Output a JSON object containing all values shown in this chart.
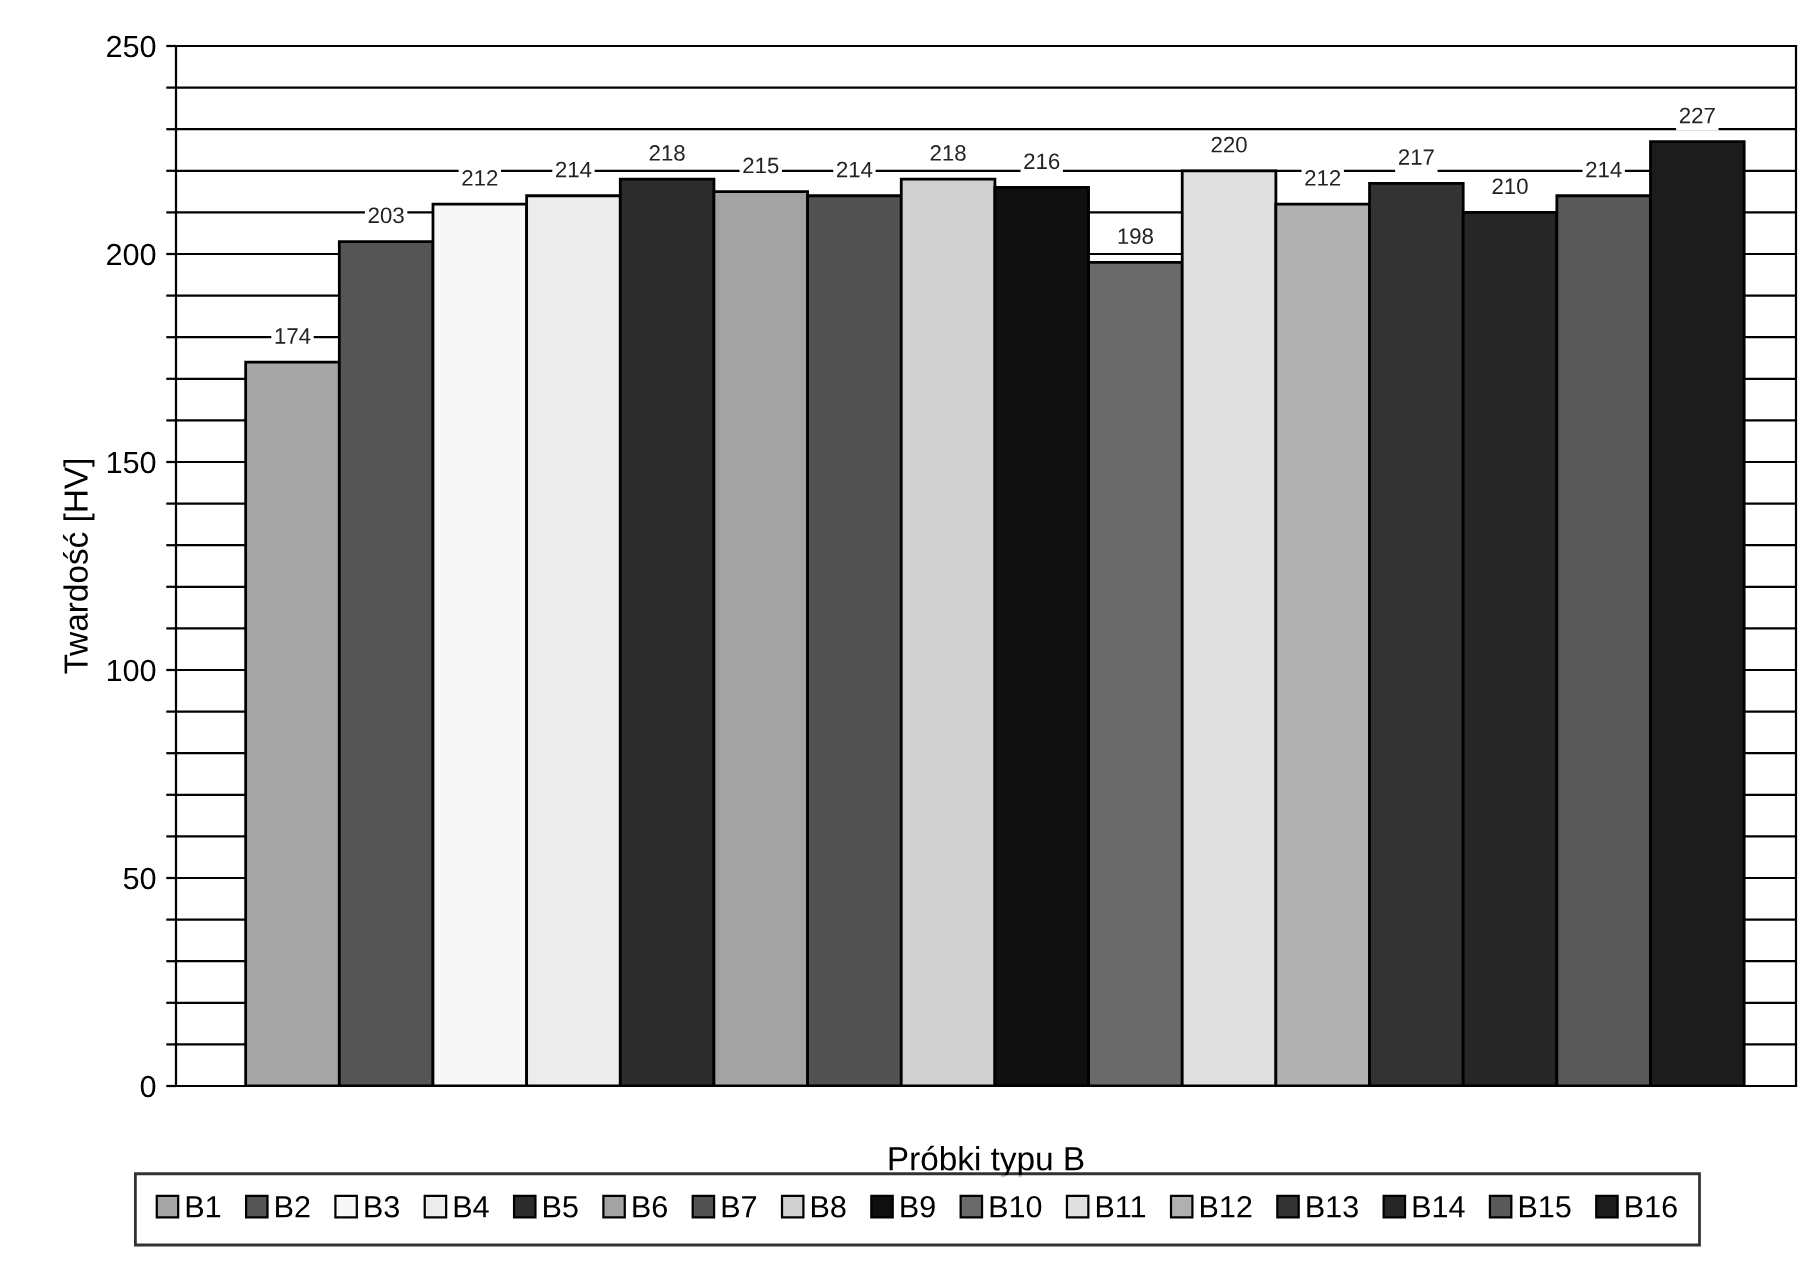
{
  "chart_data": {
    "type": "bar",
    "xlabel": "Próbki typu B",
    "ylabel": "Twardość [HV]",
    "categories": [
      null
    ],
    "series": [
      {
        "name": "B1",
        "color": "#a6a6a6",
        "values": [
          174
        ]
      },
      {
        "name": "B2",
        "color": "#555555",
        "values": [
          203
        ]
      },
      {
        "name": "B3",
        "color": "#f7f7f7",
        "values": [
          212
        ]
      },
      {
        "name": "B4",
        "color": "#ececec",
        "values": [
          214
        ]
      },
      {
        "name": "B5",
        "color": "#2c2c2c",
        "values": [
          218
        ]
      },
      {
        "name": "B6",
        "color": "#a3a3a3",
        "values": [
          215
        ]
      },
      {
        "name": "B7",
        "color": "#525252",
        "values": [
          214
        ]
      },
      {
        "name": "B8",
        "color": "#d0d0d0",
        "values": [
          218
        ]
      },
      {
        "name": "B9",
        "color": "#0f0f0f",
        "values": [
          216
        ]
      },
      {
        "name": "B10",
        "color": "#6a6a6a",
        "values": [
          198
        ]
      },
      {
        "name": "B11",
        "color": "#e0e0e0",
        "values": [
          220
        ]
      },
      {
        "name": "B12",
        "color": "#b0b0b0",
        "values": [
          212
        ]
      },
      {
        "name": "B13",
        "color": "#333333",
        "values": [
          217
        ]
      },
      {
        "name": "B14",
        "color": "#262626",
        "values": [
          210
        ]
      },
      {
        "name": "B15",
        "color": "#595959",
        "values": [
          214
        ]
      },
      {
        "name": "B16",
        "color": "#1c1c1c",
        "values": [
          227
        ]
      }
    ],
    "ylim": [
      0,
      250
    ],
    "yticks": [
      0,
      {
        "value": 10,
        "label": null
      },
      {
        "value": 20,
        "label": null
      },
      {
        "value": 30,
        "label": null
      },
      {
        "value": 40,
        "label": null
      },
      50,
      {
        "value": 60,
        "label": null
      },
      {
        "value": 70,
        "label": null
      },
      {
        "value": 80,
        "label": null
      },
      {
        "value": 90,
        "label": null
      },
      100,
      {
        "value": 110,
        "label": null
      },
      {
        "value": 120,
        "label": null
      },
      {
        "value": 130,
        "label": null
      },
      {
        "value": 140,
        "label": null
      },
      150,
      {
        "value": 160,
        "label": null
      },
      {
        "value": 170,
        "label": null
      },
      {
        "value": 180,
        "label": null
      },
      {
        "value": 190,
        "label": null
      },
      200,
      {
        "value": 210,
        "label": null
      },
      {
        "value": 220,
        "label": null
      },
      {
        "value": 230,
        "label": null
      },
      {
        "value": 240,
        "label": null
      },
      250
    ],
    "grid": "y",
    "legend": "bottom",
    "data_labels": true
  }
}
